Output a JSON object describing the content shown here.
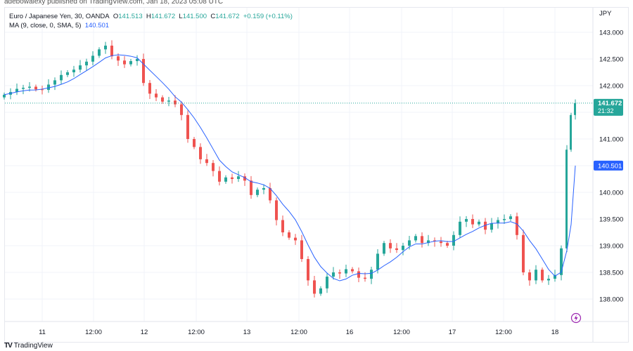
{
  "publisher_line": "adebowalexy published on TradingView.com, Jan 18, 2023 05:08 UTC",
  "legend": {
    "symbol": "Euro / Japanese Yen, 30, OANDA",
    "open_label": "O",
    "open": "141.513",
    "high_label": "H",
    "high": "141.672",
    "low_label": "L",
    "low": "141.500",
    "close_label": "C",
    "close": "141.672",
    "change": "+0.159 (+0.11%)",
    "ma_label": "MA (9, close, 0, SMA, 5)",
    "ma_value": "140.501"
  },
  "currency": "JPY",
  "brand": "TradingView",
  "colors": {
    "up": "#26a69a",
    "down": "#ef5350",
    "ma": "#2962ff",
    "grid": "#f0f3fa",
    "alert": "#9c27b0"
  },
  "price_badge": {
    "value": "141.672",
    "countdown": "21:32"
  },
  "ma_badge": {
    "value": "140.501"
  },
  "chart_data": {
    "type": "candlestick",
    "interval": "30",
    "ylim": [
      137.6,
      143.5
    ],
    "y_ticks": [
      "143.000",
      "142.500",
      "142.000",
      "141.000",
      "140.000",
      "139.500",
      "139.000",
      "138.500",
      "138.000"
    ],
    "x_ticks": [
      "11",
      "12:00",
      "12",
      "12:00",
      "13",
      "12:00",
      "16",
      "12:00",
      "17",
      "12:00",
      "18"
    ],
    "first_open": 141.78,
    "closes": [
      141.83,
      141.88,
      141.94,
      141.96,
      141.98,
      141.93,
      141.92,
      142.02,
      142.1,
      142.2,
      142.25,
      142.3,
      142.38,
      142.45,
      142.56,
      142.68,
      142.75,
      142.55,
      142.47,
      142.4,
      142.46,
      142.5,
      142.05,
      141.85,
      141.78,
      141.7,
      141.72,
      141.65,
      141.45,
      141.0,
      140.85,
      140.62,
      140.55,
      140.4,
      140.2,
      140.28,
      140.25,
      140.3,
      140.22,
      139.95,
      140.05,
      140.08,
      139.85,
      139.48,
      139.25,
      139.15,
      139.1,
      138.75,
      138.35,
      138.1,
      138.2,
      138.42,
      138.5,
      138.48,
      138.56,
      138.52,
      138.4,
      138.38,
      138.55,
      138.85,
      139.05,
      138.95,
      138.92,
      139.0,
      139.1,
      139.18,
      139.05,
      139.1,
      139.08,
      139.05,
      139.0,
      139.2,
      139.45,
      139.5,
      139.4,
      139.45,
      139.3,
      139.42,
      139.48,
      139.5,
      139.55,
      139.2,
      138.5,
      138.35,
      138.55,
      138.35,
      138.38,
      138.45,
      138.95,
      140.8,
      141.45,
      141.672
    ],
    "last_price": 141.672,
    "ma_last": 140.501
  }
}
